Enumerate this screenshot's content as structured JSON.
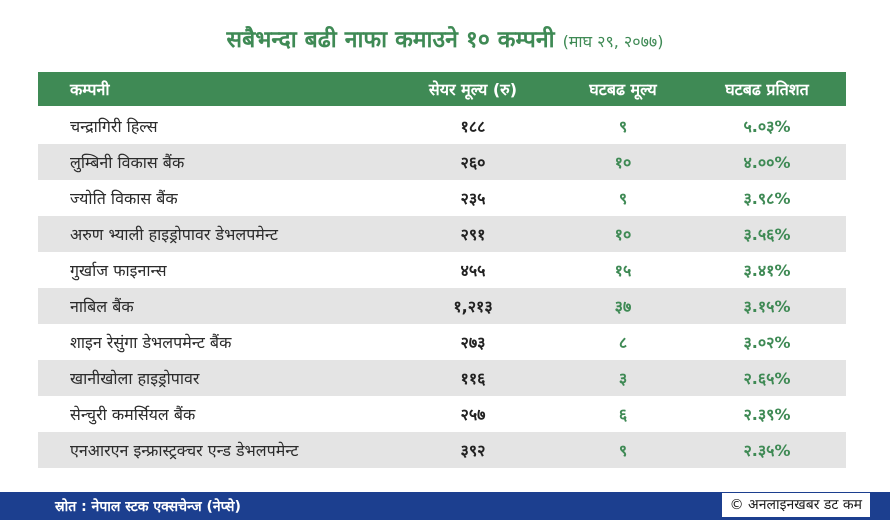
{
  "title": {
    "main": "सबैभन्दा बढी नाफा कमाउने १० कम्पनी",
    "date": "(माघ २९, २०७७)"
  },
  "table": {
    "headers": [
      "कम्पनी",
      "सेयर मूल्य (रु)",
      "घटबढ मूल्य",
      "घटबढ प्रतिशत"
    ],
    "rows": [
      [
        "चन्द्रागिरी हिल्स",
        "१८८",
        "९",
        "५.०३%"
      ],
      [
        "लुम्बिनी विकास बैंक",
        "२६०",
        "१०",
        "४.००%"
      ],
      [
        "ज्योति विकास बैंक",
        "२३५",
        "९",
        "३.९८%"
      ],
      [
        "अरुण भ्याली हाइड्रोपावर डेभलपमेन्ट",
        "२९१",
        "१०",
        "३.५६%"
      ],
      [
        "गुर्खाज फाइनान्स",
        "४५५",
        "१५",
        "३.४१%"
      ],
      [
        "नाबिल बैंक",
        "१,२१३",
        "३७",
        "३.१५%"
      ],
      [
        "शाइन रेसुंगा डेभलपमेन्ट बैंक",
        "२७३",
        "८",
        "३.०२%"
      ],
      [
        "खानीखोला हाइड्रोपावर",
        "११६",
        "३",
        "२.६५%"
      ],
      [
        "सेन्चुरी कमर्सियल बैंक",
        "२५७",
        "६",
        "२.३९%"
      ],
      [
        "एनआरएन इन्फ्रास्ट्रक्चर एन्ड डेभलपमेन्ट",
        "३९२",
        "९",
        "२.३५%"
      ]
    ]
  },
  "footer": {
    "source": "स्रोत : नेपाल स्टक एक्सचेन्ज (नेप्से)",
    "credit": "© अनलाइनखबर डट कम"
  },
  "colors": {
    "accent_green": "#3f8a55",
    "footer_blue": "#1c3f8f",
    "row_shade": "#e4e4e4"
  }
}
